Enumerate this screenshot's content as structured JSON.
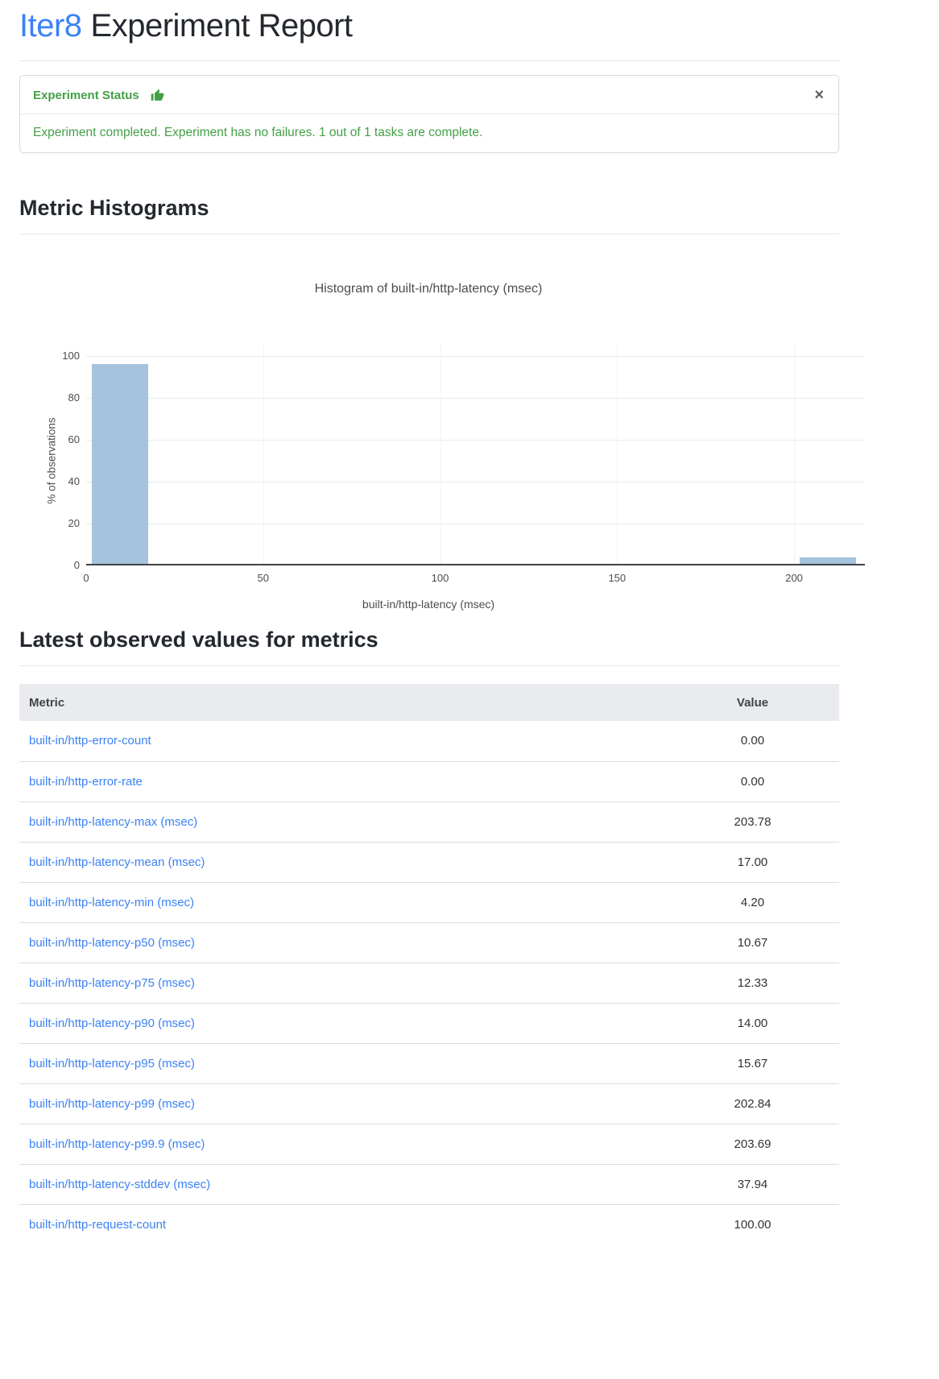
{
  "page": {
    "title_brand": "Iter8",
    "title_rest": "Experiment Report",
    "brand_color": "#3b82f6"
  },
  "alert": {
    "title": "Experiment Status",
    "icon": "thumbs-up-icon",
    "close_label": "×",
    "message": "Experiment completed. Experiment has no failures. 1 out of 1 tasks are complete.",
    "text_color": "#43a047"
  },
  "sections": {
    "histograms_heading": "Metric Histograms",
    "metrics_heading": "Latest observed values for metrics"
  },
  "chart_data": {
    "type": "bar",
    "title": "Histogram of built-in/http-latency (msec)",
    "xlabel": "built-in/http-latency (msec)",
    "ylabel": "% of observations",
    "bins": [
      {
        "x0": 1.5,
        "x1": 17.5,
        "pct": 96
      },
      {
        "x0": 201.5,
        "x1": 217.5,
        "pct": 4
      }
    ],
    "xlim": [
      0,
      220
    ],
    "ylim": [
      0,
      106
    ],
    "xticks": [
      0,
      50,
      100,
      150,
      200
    ],
    "yticks": [
      0,
      20,
      40,
      60,
      80,
      100
    ],
    "bar_color": "#a5c3dc",
    "grid": true,
    "legend": false
  },
  "table": {
    "headers": [
      "Metric",
      "Value"
    ],
    "rows": [
      {
        "metric": "built-in/http-error-count",
        "value": "0.00"
      },
      {
        "metric": "built-in/http-error-rate",
        "value": "0.00"
      },
      {
        "metric": "built-in/http-latency-max (msec)",
        "value": "203.78"
      },
      {
        "metric": "built-in/http-latency-mean (msec)",
        "value": "17.00"
      },
      {
        "metric": "built-in/http-latency-min (msec)",
        "value": "4.20"
      },
      {
        "metric": "built-in/http-latency-p50 (msec)",
        "value": "10.67"
      },
      {
        "metric": "built-in/http-latency-p75 (msec)",
        "value": "12.33"
      },
      {
        "metric": "built-in/http-latency-p90 (msec)",
        "value": "14.00"
      },
      {
        "metric": "built-in/http-latency-p95 (msec)",
        "value": "15.67"
      },
      {
        "metric": "built-in/http-latency-p99 (msec)",
        "value": "202.84"
      },
      {
        "metric": "built-in/http-latency-p99.9 (msec)",
        "value": "203.69"
      },
      {
        "metric": "built-in/http-latency-stddev (msec)",
        "value": "37.94"
      },
      {
        "metric": "built-in/http-request-count",
        "value": "100.00"
      }
    ]
  }
}
